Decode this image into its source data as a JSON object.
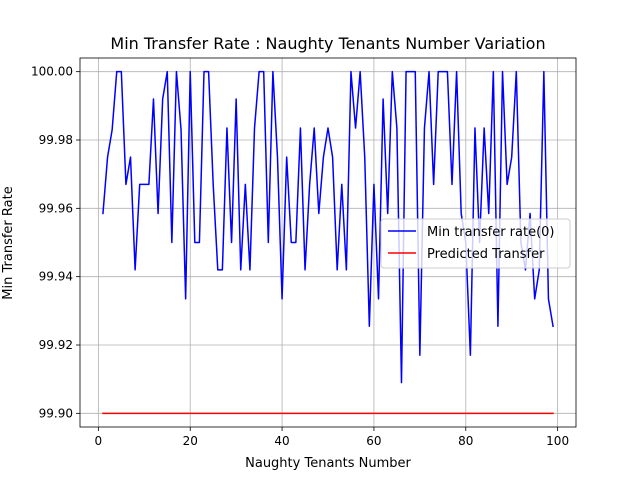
{
  "chart_data": {
    "type": "line",
    "title": "Min Transfer Rate : Naughty Tenants Number Variation",
    "xlabel": "Naughty Tenants Number",
    "ylabel": "Min Transfer Rate",
    "xlim": [
      -4,
      104
    ],
    "ylim": [
      99.896,
      100.004
    ],
    "xticks": [
      0,
      20,
      40,
      60,
      80,
      100
    ],
    "xtick_labels": [
      "0",
      "20",
      "40",
      "60",
      "80",
      "100"
    ],
    "yticks": [
      99.9,
      99.92,
      99.94,
      99.96,
      99.98,
      100.0
    ],
    "ytick_labels": [
      "99.90",
      "99.92",
      "99.94",
      "99.96",
      "99.98",
      "100.00"
    ],
    "grid": true,
    "legend_position": "center-right",
    "x": [
      1,
      2,
      3,
      4,
      5,
      6,
      7,
      8,
      9,
      10,
      11,
      12,
      13,
      14,
      15,
      16,
      17,
      18,
      19,
      20,
      21,
      22,
      23,
      24,
      25,
      26,
      27,
      28,
      29,
      30,
      31,
      32,
      33,
      34,
      35,
      36,
      37,
      38,
      39,
      40,
      41,
      42,
      43,
      44,
      45,
      46,
      47,
      48,
      49,
      50,
      51,
      52,
      53,
      54,
      55,
      56,
      57,
      58,
      59,
      60,
      61,
      62,
      63,
      64,
      65,
      66,
      67,
      68,
      69,
      70,
      71,
      72,
      73,
      74,
      75,
      76,
      77,
      78,
      79,
      80,
      81,
      82,
      83,
      84,
      85,
      86,
      87,
      88,
      89,
      90,
      91,
      92,
      93,
      94,
      95,
      96,
      97,
      98,
      99
    ],
    "series": [
      {
        "name": "Min transfer rate(0)",
        "color": "#0000ff",
        "values": [
          99.9585,
          99.975,
          99.983,
          100.0,
          100.0,
          99.967,
          99.975,
          99.942,
          99.967,
          99.967,
          99.967,
          99.992,
          99.9585,
          99.992,
          100.0,
          99.95,
          100.0,
          99.983,
          99.9335,
          100.0,
          99.95,
          99.95,
          100.0,
          100.0,
          99.967,
          99.942,
          99.942,
          99.9835,
          99.95,
          99.992,
          99.942,
          99.967,
          99.942,
          99.9835,
          100.0,
          100.0,
          99.95,
          100.0,
          99.975,
          99.9335,
          99.975,
          99.95,
          99.95,
          99.9835,
          99.942,
          99.967,
          99.9835,
          99.9585,
          99.975,
          99.9835,
          99.975,
          99.942,
          99.967,
          99.942,
          100.0,
          99.9835,
          100.0,
          99.975,
          99.9255,
          99.967,
          99.9335,
          99.992,
          99.9585,
          100.0,
          99.9835,
          99.909,
          100.0,
          100.0,
          100.0,
          99.917,
          99.9835,
          100.0,
          99.967,
          100.0,
          100.0,
          100.0,
          99.967,
          100.0,
          99.9585,
          99.95,
          99.917,
          99.9835,
          99.95,
          99.9835,
          99.9585,
          100.0,
          99.9255,
          100.0,
          99.967,
          99.975,
          100.0,
          99.95,
          99.942,
          99.9585,
          99.9335,
          99.942,
          100.0,
          99.9335,
          99.9255
        ]
      },
      {
        "name": "Predicted Transfer",
        "color": "#ff0000",
        "values": [
          99.9,
          99.9,
          99.9,
          99.9,
          99.9,
          99.9,
          99.9,
          99.9,
          99.9,
          99.9,
          99.9,
          99.9,
          99.9,
          99.9,
          99.9,
          99.9,
          99.9,
          99.9,
          99.9,
          99.9,
          99.9,
          99.9,
          99.9,
          99.9,
          99.9,
          99.9,
          99.9,
          99.9,
          99.9,
          99.9,
          99.9,
          99.9,
          99.9,
          99.9,
          99.9,
          99.9,
          99.9,
          99.9,
          99.9,
          99.9,
          99.9,
          99.9,
          99.9,
          99.9,
          99.9,
          99.9,
          99.9,
          99.9,
          99.9,
          99.9,
          99.9,
          99.9,
          99.9,
          99.9,
          99.9,
          99.9,
          99.9,
          99.9,
          99.9,
          99.9,
          99.9,
          99.9,
          99.9,
          99.9,
          99.9,
          99.9,
          99.9,
          99.9,
          99.9,
          99.9,
          99.9,
          99.9,
          99.9,
          99.9,
          99.9,
          99.9,
          99.9,
          99.9,
          99.9,
          99.9,
          99.9,
          99.9,
          99.9,
          99.9,
          99.9,
          99.9,
          99.9,
          99.9,
          99.9,
          99.9,
          99.9,
          99.9,
          99.9,
          99.9,
          99.9,
          99.9,
          99.9,
          99.9,
          99.9
        ]
      }
    ]
  }
}
